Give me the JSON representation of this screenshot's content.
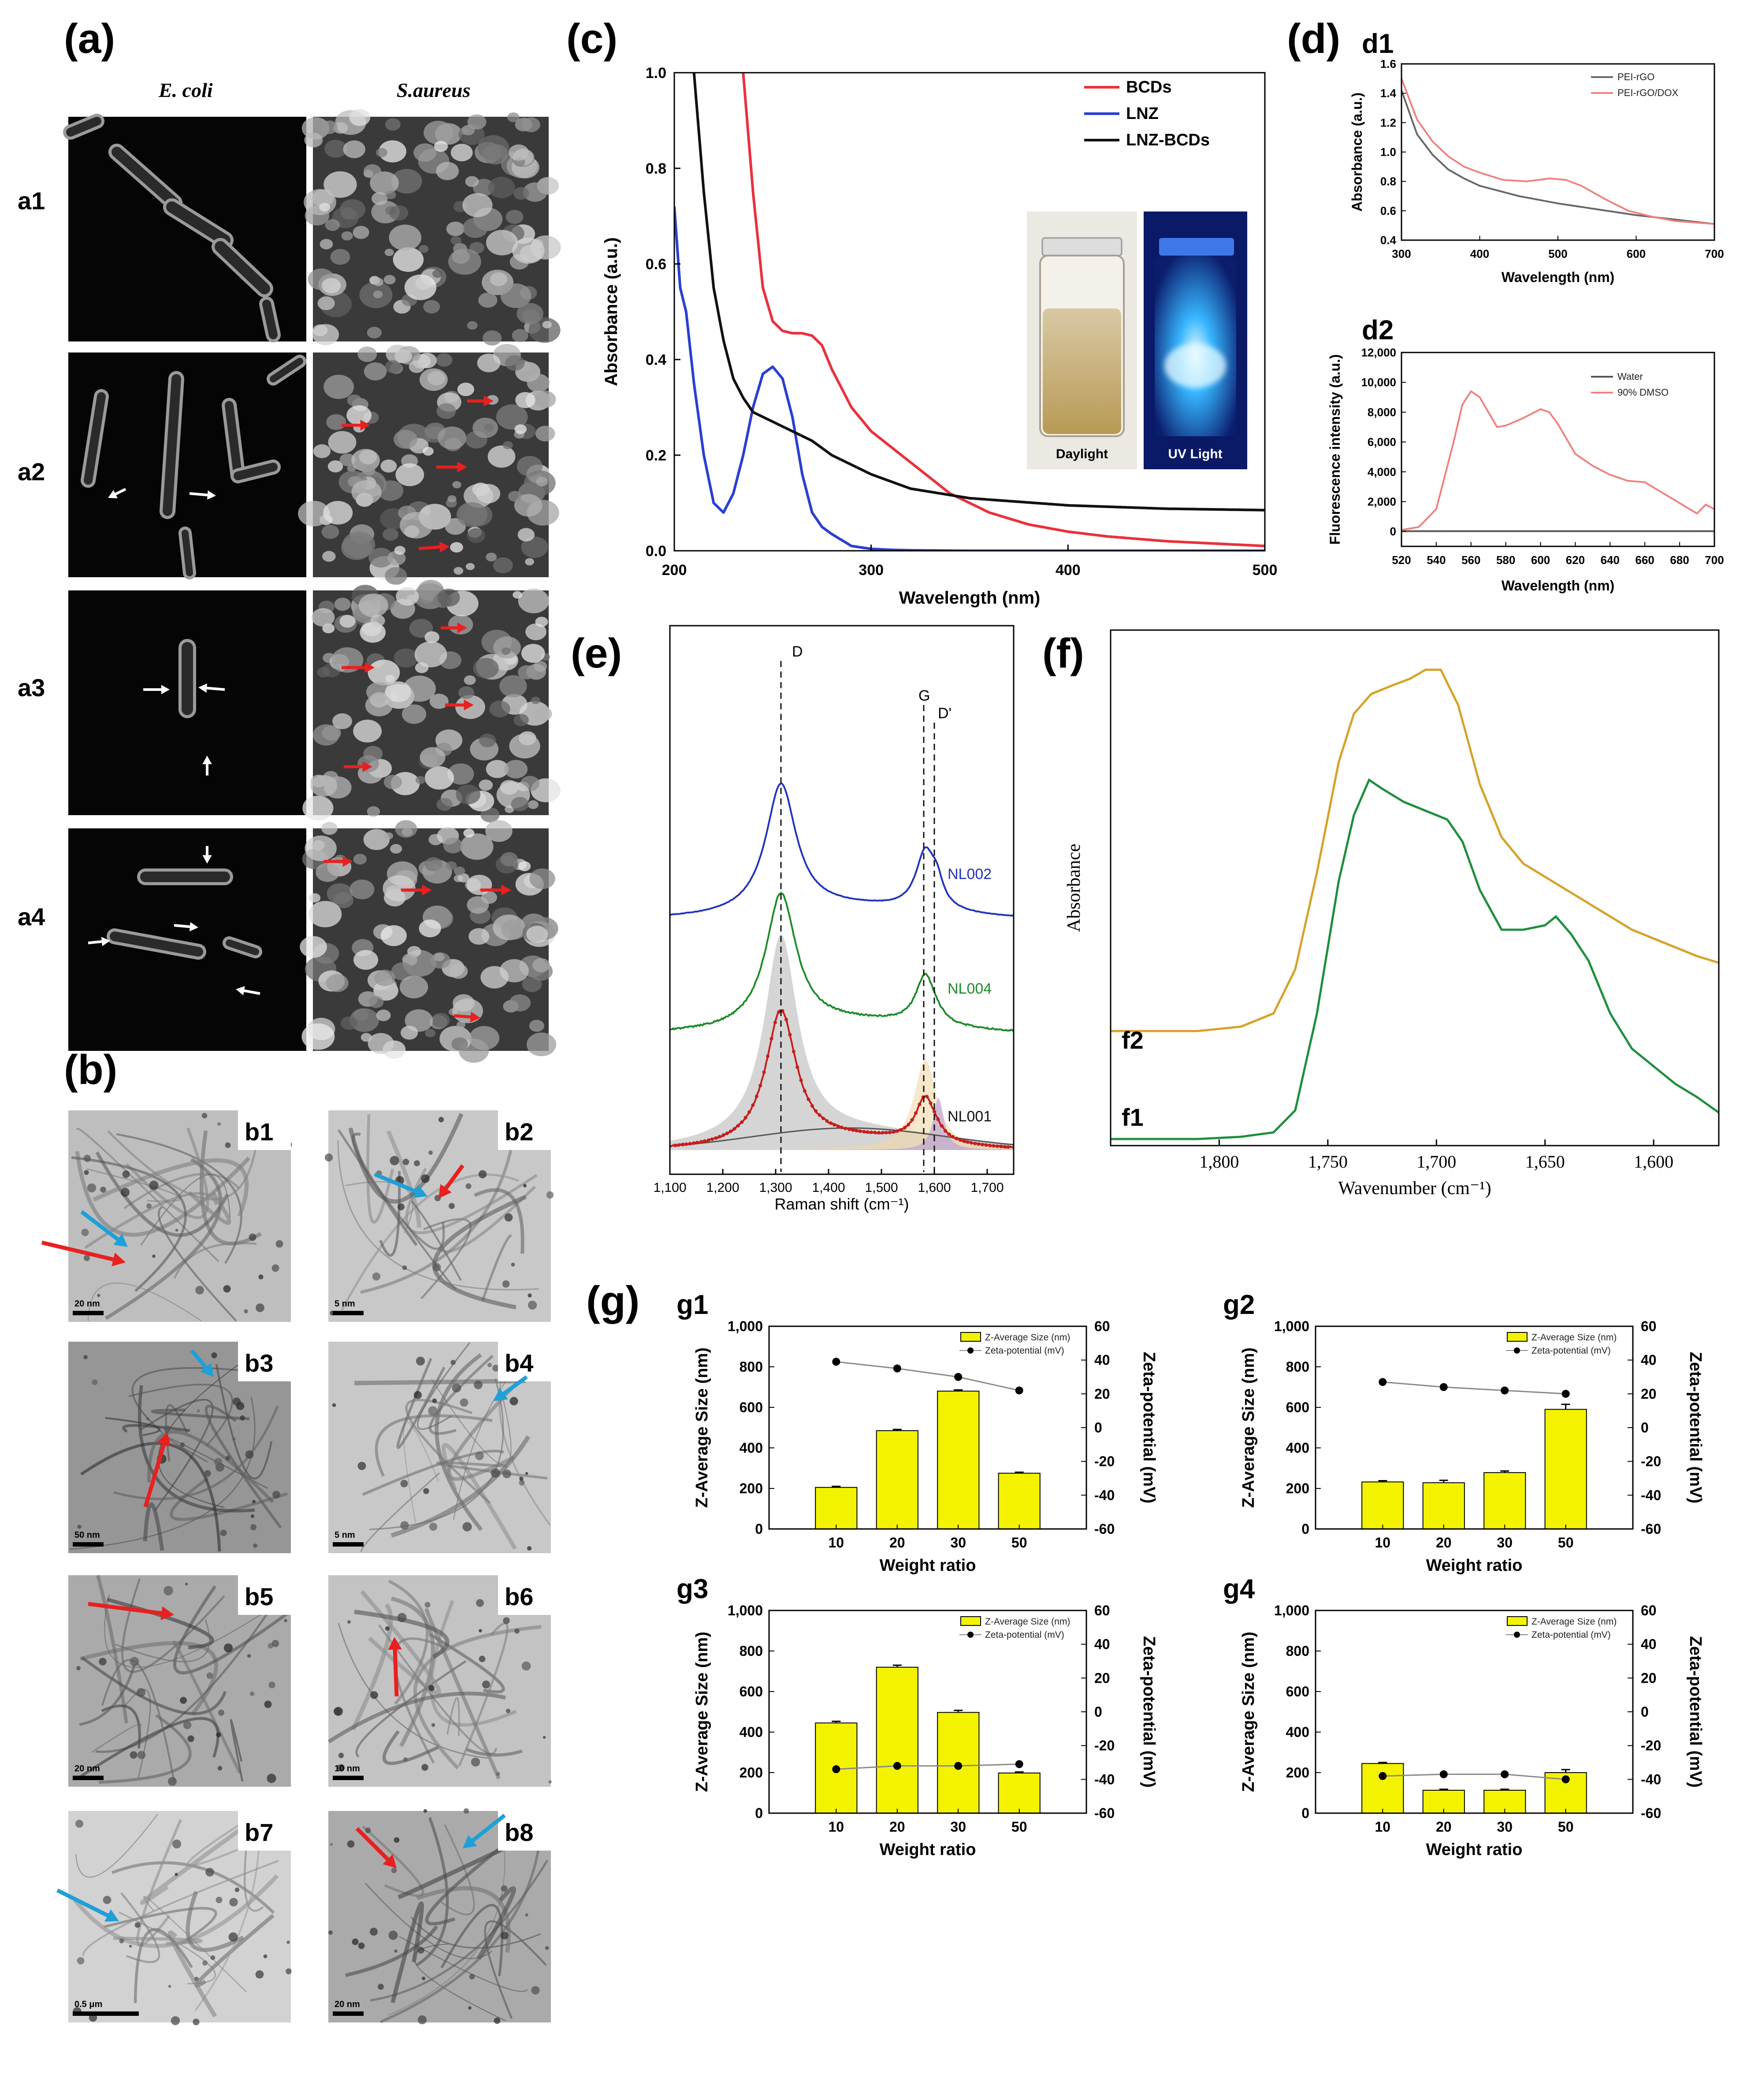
{
  "panels": {
    "a": "(a)",
    "b": "(b)",
    "c": "(c)",
    "d": "(d)",
    "e": "(e)",
    "f": "(f)",
    "g": "(g)"
  },
  "a": {
    "col1": "E. coli",
    "col2": "S.aureus",
    "rows": [
      "a1",
      "a2",
      "a3",
      "a4"
    ]
  },
  "b": {
    "labels": [
      "b1",
      "b2",
      "b3",
      "b4",
      "b5",
      "b6",
      "b7",
      "b8"
    ],
    "scales": [
      "20 nm",
      "5 nm",
      "50 nm",
      "5 nm",
      "20 nm",
      "10 nm",
      "0.5 μm",
      "20 nm"
    ]
  },
  "c": {
    "photo_labels": [
      "Daylight",
      "UV Light"
    ]
  },
  "d": {
    "d1": "d1",
    "d2": "d2"
  },
  "e": {
    "peaks": [
      "D",
      "G",
      "D'"
    ]
  },
  "f": {
    "curves": [
      "f1",
      "f2"
    ]
  },
  "g": {
    "subs": [
      "g1",
      "g2",
      "g3",
      "g4"
    ]
  },
  "chart_data": [
    {
      "id": "c",
      "type": "line",
      "title": "",
      "xlabel": "Wavelength (nm)",
      "ylabel": "Absorbance (a.u.)",
      "xlim": [
        200,
        500
      ],
      "ylim": [
        0,
        1.0
      ],
      "xticks": [
        "200",
        "300",
        "400",
        "500"
      ],
      "yticks": [
        "0.0",
        "0.2",
        "0.4",
        "0.6",
        "0.8",
        "1.0"
      ],
      "legend": "top-right",
      "series": [
        {
          "name": "BCDs",
          "color": "#e8323c",
          "x": [
            235,
            240,
            245,
            250,
            255,
            260,
            265,
            270,
            275,
            280,
            290,
            300,
            320,
            340,
            360,
            380,
            400,
            420,
            450,
            500
          ],
          "y": [
            1.0,
            0.75,
            0.55,
            0.48,
            0.46,
            0.455,
            0.455,
            0.45,
            0.43,
            0.38,
            0.3,
            0.25,
            0.185,
            0.12,
            0.08,
            0.055,
            0.04,
            0.03,
            0.02,
            0.01
          ]
        },
        {
          "name": "LNZ",
          "color": "#2b3fd0",
          "x": [
            200,
            203,
            206,
            210,
            215,
            220,
            225,
            230,
            235,
            240,
            245,
            250,
            255,
            260,
            265,
            270,
            275,
            280,
            290,
            300,
            310,
            320,
            350,
            500
          ],
          "y": [
            0.72,
            0.55,
            0.5,
            0.35,
            0.2,
            0.1,
            0.08,
            0.12,
            0.2,
            0.3,
            0.37,
            0.385,
            0.36,
            0.28,
            0.16,
            0.08,
            0.05,
            0.035,
            0.01,
            0.004,
            0.002,
            0.001,
            0.0,
            0.0
          ]
        },
        {
          "name": "LNZ-BCDs",
          "color": "#111111",
          "x": [
            210,
            215,
            220,
            225,
            230,
            235,
            240,
            250,
            260,
            270,
            280,
            300,
            320,
            350,
            400,
            450,
            500
          ],
          "y": [
            1.0,
            0.75,
            0.55,
            0.44,
            0.36,
            0.32,
            0.29,
            0.27,
            0.25,
            0.23,
            0.2,
            0.16,
            0.13,
            0.11,
            0.095,
            0.088,
            0.085
          ]
        }
      ]
    },
    {
      "id": "d1",
      "type": "line",
      "xlabel": "Wavelength (nm)",
      "ylabel": "Absorbance (a.u.)",
      "xlim": [
        300,
        700
      ],
      "ylim": [
        0.4,
        1.6
      ],
      "xticks": [
        "300",
        "400",
        "500",
        "600",
        "700"
      ],
      "yticks": [
        "0.4",
        "0.6",
        "0.8",
        "1.0",
        "1.2",
        "1.4",
        "1.6"
      ],
      "series": [
        {
          "name": "PEI-rGO",
          "color": "#666666",
          "x": [
            300,
            320,
            340,
            360,
            380,
            400,
            450,
            500,
            550,
            600,
            650,
            700
          ],
          "y": [
            1.42,
            1.12,
            0.98,
            0.88,
            0.82,
            0.77,
            0.7,
            0.65,
            0.61,
            0.57,
            0.54,
            0.51
          ]
        },
        {
          "name": "PEI-rGO/DOX",
          "color": "#f08080",
          "x": [
            300,
            320,
            340,
            360,
            380,
            400,
            430,
            460,
            490,
            510,
            530,
            560,
            590,
            620,
            650,
            700
          ],
          "y": [
            1.5,
            1.22,
            1.07,
            0.97,
            0.9,
            0.86,
            0.81,
            0.8,
            0.82,
            0.81,
            0.77,
            0.68,
            0.6,
            0.56,
            0.53,
            0.51
          ]
        }
      ]
    },
    {
      "id": "d2",
      "type": "line",
      "xlabel": "Wavelength (nm)",
      "ylabel": "Fluorescence intensity (a.u.)",
      "xlim": [
        520,
        700
      ],
      "ylim": [
        -1000,
        12000
      ],
      "xticks": [
        "520",
        "540",
        "560",
        "580",
        "600",
        "620",
        "640",
        "660",
        "680",
        "700"
      ],
      "yticks": [
        "0",
        "2,000",
        "4,000",
        "6,000",
        "8,000",
        "10,000",
        "12,000"
      ],
      "series": [
        {
          "name": "Water",
          "color": "#555555",
          "x": [
            520,
            700
          ],
          "y": [
            20,
            20
          ]
        },
        {
          "name": "90% DMSO",
          "color": "#f08080",
          "x": [
            520,
            530,
            540,
            550,
            555,
            560,
            565,
            570,
            575,
            580,
            590,
            600,
            605,
            610,
            620,
            630,
            640,
            650,
            660,
            670,
            680,
            690,
            695,
            700
          ],
          "y": [
            100,
            300,
            1500,
            6000,
            8500,
            9400,
            9000,
            8000,
            7000,
            7100,
            7600,
            8200,
            8000,
            7200,
            5200,
            4400,
            3800,
            3400,
            3300,
            2600,
            1900,
            1200,
            1800,
            1500
          ]
        }
      ]
    },
    {
      "id": "e",
      "type": "line",
      "xlabel": "Raman shift (cm⁻¹)",
      "ylabel": "",
      "xlim": [
        1100,
        1750
      ],
      "xticks": [
        "1,100",
        "1,200",
        "1,300",
        "1,400",
        "1,500",
        "1,600",
        "1,700"
      ],
      "series": [
        {
          "name": "NL002",
          "color": "#2233bb"
        },
        {
          "name": "NL004",
          "color": "#1e8a2a"
        },
        {
          "name": "NL001",
          "color": "#c81c1c"
        }
      ],
      "peak_positions": {
        "D": 1310,
        "G": 1580,
        "D'": 1600
      }
    },
    {
      "id": "f",
      "type": "line",
      "xlabel": "Wavenumber (cm⁻¹)",
      "ylabel": "Absorbance",
      "xlim": [
        1850,
        1570
      ],
      "xticks": [
        "1,800",
        "1,750",
        "1,700",
        "1,650",
        "1,600"
      ],
      "series": [
        {
          "name": "f1",
          "color": "#1e8f3c"
        },
        {
          "name": "f2",
          "color": "#d6a22a"
        }
      ]
    },
    {
      "id": "g1",
      "type": "bar",
      "xlabel": "Weight ratio",
      "ylabel": "Z-Average Size (nm)",
      "y2label": "Zeta-potential (mV)",
      "categories": [
        "10",
        "20",
        "30",
        "50"
      ],
      "values": [
        205,
        485,
        680,
        275
      ],
      "errors": [
        5,
        6,
        6,
        5
      ],
      "zeta": [
        39,
        35,
        30,
        22
      ],
      "ylim": [
        0,
        1000
      ],
      "y2lim": [
        -60,
        60
      ],
      "yticks": [
        "0",
        "200",
        "400",
        "600",
        "800",
        "1,000"
      ],
      "y2ticks": [
        "-60",
        "-40",
        "-20",
        "0",
        "20",
        "40",
        "60"
      ],
      "legend": [
        "Z-Average Size (nm)",
        "Zeta-potential (mV)"
      ]
    },
    {
      "id": "g2",
      "type": "bar",
      "xlabel": "Weight ratio",
      "ylabel": "Z-Average Size (nm)",
      "y2label": "Zeta-potential (mV)",
      "categories": [
        "10",
        "20",
        "30",
        "50"
      ],
      "values": [
        232,
        228,
        278,
        590
      ],
      "errors": [
        6,
        12,
        8,
        25
      ],
      "zeta": [
        27,
        24,
        22,
        20
      ],
      "ylim": [
        0,
        1000
      ],
      "y2lim": [
        -60,
        60
      ],
      "yticks": [
        "0",
        "200",
        "400",
        "600",
        "800",
        "1,000"
      ],
      "y2ticks": [
        "-60",
        "-40",
        "-20",
        "0",
        "20",
        "40",
        "60"
      ],
      "legend": [
        "Z-Average Size (nm)",
        "Zeta-potential (mV)"
      ]
    },
    {
      "id": "g3",
      "type": "bar",
      "xlabel": "Weight ratio",
      "ylabel": "Z-Average Size (nm)",
      "y2label": "Zeta-potential (mV)",
      "categories": [
        "10",
        "20",
        "30",
        "50"
      ],
      "values": [
        445,
        720,
        497,
        198
      ],
      "errors": [
        8,
        10,
        10,
        5
      ],
      "zeta": [
        -34,
        -32,
        -32,
        -31
      ],
      "ylim": [
        0,
        1000
      ],
      "y2lim": [
        -60,
        60
      ],
      "yticks": [
        "0",
        "200",
        "400",
        "600",
        "800",
        "1,000"
      ],
      "y2ticks": [
        "-60",
        "-40",
        "-20",
        "0",
        "20",
        "40",
        "60"
      ],
      "legend": [
        "Z-Average Size (nm)",
        "Zeta-potential (mV)"
      ]
    },
    {
      "id": "g4",
      "type": "bar",
      "xlabel": "Weight ratio",
      "ylabel": "Z-Average Size (nm)",
      "y2label": "Zeta-potential (mV)",
      "categories": [
        "10",
        "20",
        "30",
        "50"
      ],
      "values": [
        245,
        113,
        113,
        200
      ],
      "errors": [
        5,
        5,
        5,
        15
      ],
      "zeta": [
        -38,
        -37,
        -37,
        -40
      ],
      "ylim": [
        0,
        1000
      ],
      "y2lim": [
        -60,
        60
      ],
      "yticks": [
        "0",
        "200",
        "400",
        "600",
        "800",
        "1,000"
      ],
      "y2ticks": [
        "-60",
        "-40",
        "-20",
        "0",
        "20",
        "40",
        "60"
      ],
      "legend": [
        "Z-Average Size (nm)",
        "Zeta-potential (mV)"
      ]
    }
  ]
}
